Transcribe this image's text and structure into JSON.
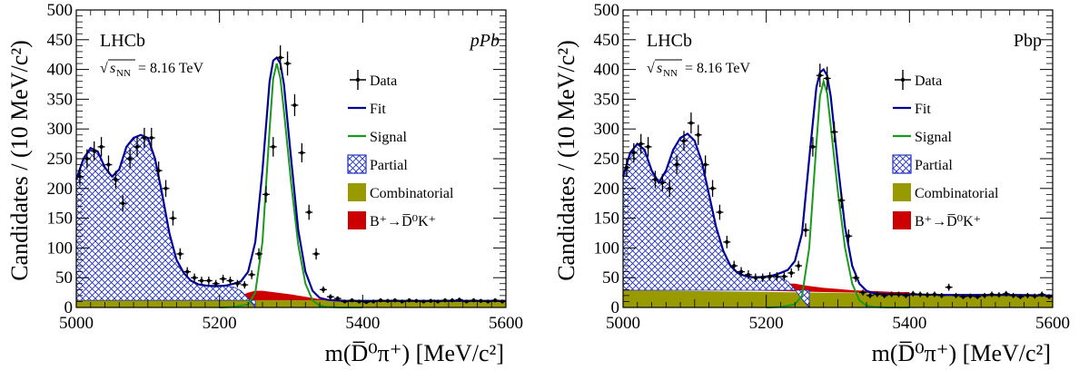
{
  "colors": {
    "fit": "#000099",
    "signal": "#1a9a1a",
    "partial_line": "#000099",
    "combinatorial": "#999900",
    "bdk": "#cc0000",
    "data": "#000000"
  },
  "common": {
    "experiment": "LHCb",
    "energy_label": "= 8.16 TeV",
    "energy_sqrt": "s",
    "energy_sub": "NN",
    "ylabel": "Candidates / (10 MeV/c²)",
    "xlabel": "m(D̅⁰π⁺) [MeV/c²]",
    "legend": {
      "data": "Data",
      "fit": "Fit",
      "signal": "Signal",
      "partial": "Partial",
      "combinatorial": "Combinatorial",
      "bdk": "B⁺→D̅⁰K⁺"
    }
  },
  "chart_data": [
    {
      "type": "line",
      "collision_label": "pPb",
      "xlim": [
        5000,
        5600
      ],
      "ylim": [
        0,
        500
      ],
      "xticks": [
        5000,
        5200,
        5400,
        5600
      ],
      "yticks": [
        0,
        50,
        100,
        150,
        200,
        250,
        300,
        350,
        400,
        450,
        500
      ],
      "data_x": [
        5005,
        5015,
        5025,
        5035,
        5045,
        5055,
        5065,
        5075,
        5085,
        5095,
        5105,
        5115,
        5125,
        5135,
        5145,
        5155,
        5165,
        5175,
        5185,
        5195,
        5205,
        5215,
        5225,
        5235,
        5245,
        5255,
        5265,
        5275,
        5285,
        5295,
        5305,
        5315,
        5325,
        5335,
        5345,
        5355,
        5365,
        5375,
        5385,
        5395,
        5405,
        5415,
        5425,
        5435,
        5445,
        5455,
        5465,
        5475,
        5485,
        5495,
        5505,
        5515,
        5525,
        5535,
        5545,
        5555,
        5565,
        5575,
        5585,
        5595
      ],
      "data_y": [
        220,
        250,
        263,
        270,
        240,
        215,
        175,
        250,
        270,
        285,
        285,
        230,
        200,
        150,
        90,
        60,
        50,
        45,
        45,
        40,
        48,
        45,
        40,
        38,
        55,
        90,
        190,
        270,
        420,
        410,
        340,
        260,
        160,
        90,
        30,
        18,
        15,
        10,
        12,
        10,
        9,
        10,
        12,
        11,
        12,
        10,
        12,
        11,
        10,
        11,
        10,
        12,
        12,
        13,
        10,
        12,
        11,
        10,
        12,
        10
      ],
      "fit": {
        "x": [
          5000,
          5010,
          5020,
          5030,
          5040,
          5050,
          5060,
          5070,
          5080,
          5090,
          5100,
          5110,
          5120,
          5130,
          5140,
          5150,
          5160,
          5170,
          5180,
          5190,
          5200,
          5210,
          5220,
          5230,
          5240,
          5250,
          5260,
          5270,
          5275,
          5280,
          5285,
          5290,
          5300,
          5310,
          5320,
          5330,
          5340,
          5350,
          5360,
          5380,
          5400,
          5450,
          5500,
          5550,
          5600
        ],
        "y": [
          215,
          250,
          268,
          262,
          235,
          220,
          232,
          270,
          285,
          290,
          285,
          250,
          190,
          125,
          80,
          58,
          45,
          39,
          37,
          36,
          36,
          37,
          40,
          44,
          60,
          110,
          230,
          380,
          415,
          420,
          410,
          375,
          250,
          130,
          60,
          28,
          16,
          13,
          12,
          11,
          11,
          11,
          11,
          11,
          11
        ]
      },
      "signal": {
        "x": [
          5200,
          5220,
          5240,
          5250,
          5260,
          5270,
          5275,
          5280,
          5285,
          5290,
          5300,
          5310,
          5320,
          5330,
          5340,
          5350,
          5370,
          5400
        ],
        "y": [
          0,
          1,
          5,
          25,
          110,
          300,
          385,
          410,
          385,
          330,
          210,
          105,
          40,
          12,
          3,
          1,
          0,
          0
        ]
      },
      "partial": {
        "x": [
          5000,
          5010,
          5020,
          5030,
          5040,
          5050,
          5060,
          5070,
          5080,
          5090,
          5100,
          5110,
          5120,
          5130,
          5140,
          5150,
          5160,
          5170,
          5180,
          5190,
          5200,
          5210,
          5220,
          5230,
          5240,
          5250
        ],
        "y": [
          215,
          250,
          268,
          262,
          235,
          220,
          232,
          270,
          285,
          290,
          285,
          250,
          190,
          125,
          80,
          58,
          45,
          39,
          37,
          36,
          36,
          36,
          34,
          28,
          15,
          0
        ]
      },
      "combinatorial_level": 12,
      "bdk": {
        "x": [
          5200,
          5210,
          5220,
          5230,
          5240,
          5250,
          5260,
          5280,
          5300,
          5320,
          5340,
          5360,
          5380,
          5400
        ],
        "y": [
          12,
          14,
          16,
          20,
          25,
          28,
          28,
          25,
          22,
          18,
          14,
          12,
          12,
          12
        ]
      }
    },
    {
      "type": "line",
      "collision_label": "Pbp",
      "xlim": [
        5000,
        5600
      ],
      "ylim": [
        0,
        500
      ],
      "xticks": [
        5000,
        5200,
        5400,
        5600
      ],
      "yticks": [
        0,
        50,
        100,
        150,
        200,
        250,
        300,
        350,
        400,
        450,
        500
      ],
      "data_x": [
        5005,
        5015,
        5025,
        5035,
        5045,
        5055,
        5065,
        5075,
        5085,
        5095,
        5105,
        5115,
        5125,
        5135,
        5145,
        5155,
        5165,
        5175,
        5185,
        5195,
        5205,
        5215,
        5225,
        5235,
        5245,
        5255,
        5265,
        5275,
        5285,
        5295,
        5305,
        5315,
        5325,
        5335,
        5345,
        5355,
        5365,
        5375,
        5385,
        5395,
        5405,
        5415,
        5425,
        5435,
        5445,
        5455,
        5465,
        5475,
        5485,
        5495,
        5505,
        5515,
        5525,
        5535,
        5545,
        5555,
        5565,
        5575,
        5585,
        5595
      ],
      "data_y": [
        235,
        260,
        275,
        270,
        215,
        210,
        200,
        240,
        280,
        310,
        290,
        240,
        200,
        160,
        110,
        70,
        60,
        55,
        50,
        50,
        52,
        52,
        52,
        58,
        70,
        130,
        270,
        390,
        385,
        295,
        180,
        120,
        50,
        25,
        20,
        22,
        20,
        22,
        22,
        20,
        23,
        22,
        21,
        22,
        20,
        34,
        20,
        18,
        19,
        18,
        20,
        22,
        21,
        23,
        20,
        18,
        20,
        19,
        22,
        18
      ],
      "fit": {
        "x": [
          5000,
          5010,
          5020,
          5030,
          5040,
          5050,
          5060,
          5070,
          5080,
          5090,
          5100,
          5110,
          5120,
          5130,
          5140,
          5150,
          5160,
          5170,
          5180,
          5190,
          5200,
          5210,
          5220,
          5230,
          5240,
          5250,
          5260,
          5270,
          5275,
          5280,
          5285,
          5290,
          5300,
          5310,
          5320,
          5330,
          5340,
          5350,
          5360,
          5380,
          5400,
          5450,
          5500,
          5550,
          5600
        ],
        "y": [
          220,
          260,
          275,
          265,
          230,
          210,
          230,
          265,
          285,
          292,
          280,
          245,
          190,
          135,
          95,
          70,
          58,
          53,
          51,
          51,
          52,
          54,
          58,
          63,
          78,
          125,
          250,
          370,
          395,
          400,
          390,
          355,
          240,
          135,
          70,
          40,
          28,
          24,
          23,
          22,
          22,
          21,
          21,
          21,
          20
        ]
      },
      "signal": {
        "x": [
          5200,
          5220,
          5240,
          5250,
          5260,
          5270,
          5275,
          5280,
          5285,
          5290,
          5300,
          5310,
          5320,
          5330,
          5340,
          5350,
          5370,
          5400
        ],
        "y": [
          0,
          1,
          5,
          20,
          100,
          275,
          355,
          380,
          360,
          305,
          195,
          100,
          40,
          12,
          3,
          1,
          0,
          0
        ]
      },
      "partial": {
        "x": [
          5000,
          5010,
          5020,
          5030,
          5040,
          5050,
          5060,
          5070,
          5080,
          5090,
          5100,
          5110,
          5120,
          5130,
          5140,
          5150,
          5160,
          5170,
          5180,
          5190,
          5200,
          5210,
          5220,
          5230,
          5240,
          5250,
          5260
        ],
        "y": [
          220,
          260,
          275,
          265,
          230,
          210,
          230,
          265,
          285,
          292,
          280,
          245,
          190,
          135,
          95,
          70,
          58,
          53,
          51,
          51,
          52,
          52,
          50,
          44,
          30,
          14,
          0
        ]
      },
      "combinatorial_level": 29,
      "combinatorial_end": 20,
      "bdk": {
        "x": [
          5160,
          5180,
          5200,
          5210,
          5220,
          5230,
          5240,
          5250,
          5260,
          5280,
          5300,
          5320,
          5340,
          5360,
          5380,
          5400
        ],
        "y": [
          29,
          29,
          32,
          35,
          38,
          40,
          40,
          38,
          36,
          33,
          31,
          29,
          28,
          27,
          26,
          26
        ]
      }
    }
  ]
}
